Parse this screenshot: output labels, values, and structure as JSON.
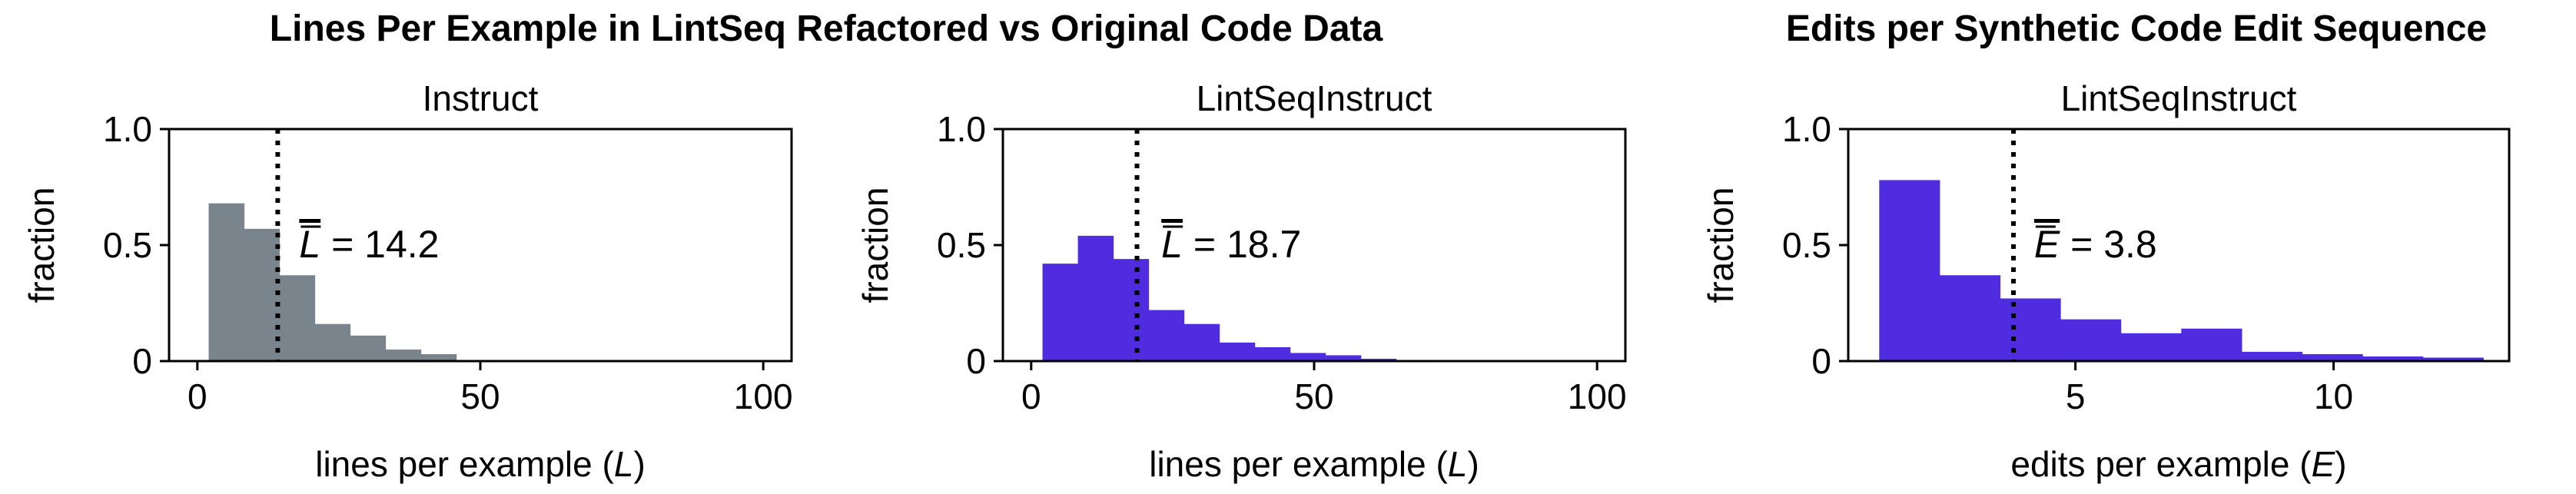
{
  "headers": {
    "left": "Lines Per Example in LintSeq Refactored vs Original Code Data",
    "right": "Edits per Synthetic Code Edit Sequence"
  },
  "colors": {
    "gray": "#7a848c",
    "purple": "#4f2ce0",
    "axis": "#000000"
  },
  "chart_data": [
    {
      "type": "bar",
      "title": "Instruct",
      "xlabel": "lines per example (L)",
      "ylabel": "fraction",
      "xlim": [
        -5,
        105
      ],
      "ylim": [
        0,
        1.0
      ],
      "xticks": [
        0,
        50,
        100
      ],
      "xtick_labels": [
        "0",
        "50",
        "100"
      ],
      "yticks": [
        0,
        0.5,
        1.0
      ],
      "ytick_labels": [
        "0",
        "0.5",
        "1.0"
      ],
      "bin_edges": [
        2,
        8.25,
        14.5,
        20.75,
        27,
        33.25,
        39.5,
        45.75,
        52,
        58.25,
        64.5,
        70.75,
        77,
        83.25,
        89.5,
        95.75,
        102
      ],
      "values": [
        0.68,
        0.57,
        0.37,
        0.16,
        0.11,
        0.05,
        0.03,
        0.005,
        0.003,
        0.002,
        0.001,
        0.001,
        0.001,
        0,
        0,
        0
      ],
      "mean_line": 14.2,
      "annotation": {
        "symbol": "L",
        "text": "= 14.2",
        "x": 18,
        "y": 0.5
      },
      "color": "#7a848c"
    },
    {
      "type": "bar",
      "title": "LintSeqInstruct",
      "xlabel": "lines per example (L)",
      "ylabel": "fraction",
      "xlim": [
        -5,
        105
      ],
      "ylim": [
        0,
        1.0
      ],
      "xticks": [
        0,
        50,
        100
      ],
      "xtick_labels": [
        "0",
        "50",
        "100"
      ],
      "yticks": [
        0,
        0.5,
        1.0
      ],
      "ytick_labels": [
        "0",
        "0.5",
        "1.0"
      ],
      "bin_edges": [
        2,
        8.25,
        14.5,
        20.75,
        27,
        33.25,
        39.5,
        45.75,
        52,
        58.25,
        64.5,
        70.75,
        77,
        83.25,
        89.5,
        95.75,
        102
      ],
      "values": [
        0.42,
        0.54,
        0.44,
        0.22,
        0.16,
        0.08,
        0.06,
        0.035,
        0.025,
        0.01,
        0.005,
        0.003,
        0.002,
        0.001,
        0.001,
        0.001
      ],
      "mean_line": 18.7,
      "annotation": {
        "symbol": "L",
        "text": "= 18.7",
        "x": 23,
        "y": 0.5
      },
      "color": "#4f2ce0"
    },
    {
      "type": "bar",
      "title": "LintSeqInstruct",
      "xlabel": "edits per example (E)",
      "ylabel": "fraction",
      "xlim": [
        0.6,
        13.4
      ],
      "ylim": [
        0,
        1.0
      ],
      "xticks": [
        5,
        10
      ],
      "xtick_labels": [
        "5",
        "10"
      ],
      "yticks": [
        0,
        0.5,
        1.0
      ],
      "ytick_labels": [
        "0",
        "0.5",
        "1.0"
      ],
      "bin_edges": [
        1.2,
        2.37,
        3.54,
        4.71,
        5.88,
        7.05,
        8.22,
        9.39,
        10.56,
        11.73,
        12.9
      ],
      "values": [
        0.78,
        0.37,
        0.27,
        0.18,
        0.12,
        0.14,
        0.04,
        0.03,
        0.02,
        0.015
      ],
      "mean_line": 3.8,
      "annotation": {
        "symbol": "E",
        "text": "= 3.8",
        "x": 4.2,
        "y": 0.5
      },
      "color": "#4f2ce0"
    }
  ]
}
